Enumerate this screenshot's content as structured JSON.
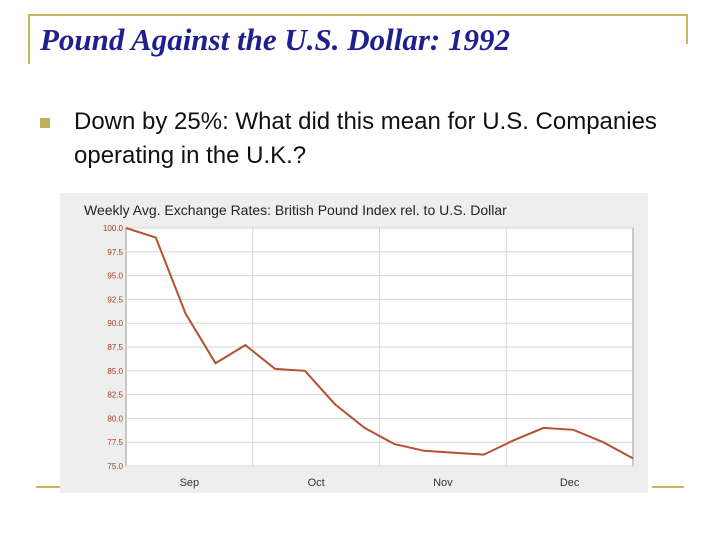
{
  "slide": {
    "title": "Pound Against the U.S. Dollar: 1992",
    "bullet": "Down by 25%: What did this mean for U.S. Companies operating in the U.K.?"
  },
  "colors": {
    "title": "#1f1f8f",
    "accent": "#c8b560",
    "line": "#b5512f",
    "chart_bg": "#eeeeee"
  },
  "chart_data": {
    "type": "line",
    "title": "Weekly Avg. Exchange Rates: British Pound Index rel. to U.S. Dollar",
    "xlabel": "",
    "ylabel": "",
    "ylim": [
      75,
      100
    ],
    "yticks": [
      "100.0",
      "97.5",
      "95.0",
      "92.5",
      "90.0",
      "87.5",
      "85.0",
      "82.5",
      "80.0",
      "77.5",
      "75.0"
    ],
    "xticks": [
      "Sep",
      "Oct",
      "Nov",
      "Dec"
    ],
    "grid": true,
    "series": [
      {
        "values": [
          100.0,
          99.0,
          91.0,
          85.8,
          87.7,
          85.2,
          85.0,
          81.5,
          79.0,
          77.3,
          76.6,
          76.4,
          76.2,
          77.7,
          79.0,
          78.8,
          77.5,
          75.8
        ]
      }
    ]
  }
}
